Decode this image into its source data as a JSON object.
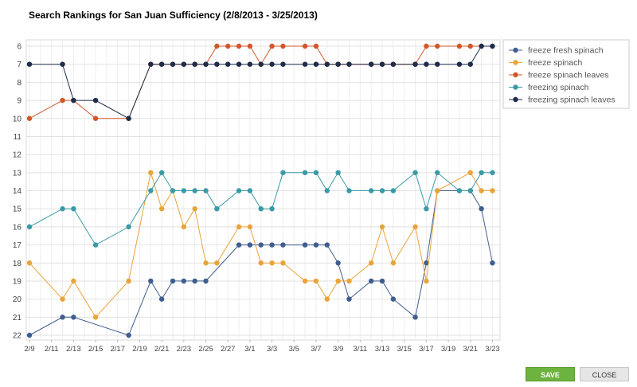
{
  "title": "Search Rankings for San Juan Sufficiency (2/8/2013 - 3/25/2013)",
  "buttons": {
    "save": "SAVE",
    "close": "CLOSE"
  },
  "chart_data": {
    "type": "line",
    "title": "Search Rankings for San Juan Sufficiency (2/8/2013 - 3/25/2013)",
    "x_range": [
      9,
      51.4
    ],
    "ylim": [
      6,
      22.4
    ],
    "y_inverted": true,
    "y_ticks": [
      6,
      7,
      8,
      9,
      10,
      11,
      12,
      13,
      14,
      15,
      16,
      17,
      18,
      19,
      20,
      21,
      22
    ],
    "x_ticks": [
      {
        "x": 9,
        "label": "2/9"
      },
      {
        "x": 11,
        "label": "2/11"
      },
      {
        "x": 13,
        "label": "2/13"
      },
      {
        "x": 15,
        "label": "2/15"
      },
      {
        "x": 17,
        "label": "2/17"
      },
      {
        "x": 19,
        "label": "2/19"
      },
      {
        "x": 21,
        "label": "2/21"
      },
      {
        "x": 23,
        "label": "2/23"
      },
      {
        "x": 25,
        "label": "2/25"
      },
      {
        "x": 27,
        "label": "2/27"
      },
      {
        "x": 29,
        "label": "3/1"
      },
      {
        "x": 31,
        "label": "3/3"
      },
      {
        "x": 33,
        "label": "3/5"
      },
      {
        "x": 35,
        "label": "3/7"
      },
      {
        "x": 37,
        "label": "3/9"
      },
      {
        "x": 39,
        "label": "3/11"
      },
      {
        "x": 41,
        "label": "3/13"
      },
      {
        "x": 43,
        "label": "3/15"
      },
      {
        "x": 45,
        "label": "3/17"
      },
      {
        "x": 47,
        "label": "3/19"
      },
      {
        "x": 49,
        "label": "3/21"
      },
      {
        "x": 51,
        "label": "3/23"
      }
    ],
    "legend_position": "right",
    "series": [
      {
        "name": "freeze fresh spinach",
        "color": "#3f5e8f",
        "points": [
          [
            9,
            22
          ],
          [
            12,
            21
          ],
          [
            13,
            21
          ],
          [
            18,
            22
          ],
          [
            20,
            19
          ],
          [
            21,
            20
          ],
          [
            22,
            19
          ],
          [
            23,
            19
          ],
          [
            24,
            19
          ],
          [
            25,
            19
          ],
          [
            28,
            17
          ],
          [
            29,
            17
          ],
          [
            30,
            17
          ],
          [
            31,
            17
          ],
          [
            32,
            17
          ],
          [
            34,
            17
          ],
          [
            35,
            17
          ],
          [
            36,
            17
          ],
          [
            37,
            18
          ],
          [
            38,
            20
          ],
          [
            40,
            19
          ],
          [
            41,
            19
          ],
          [
            42,
            20
          ],
          [
            44,
            21
          ],
          [
            45,
            18
          ],
          [
            46,
            14
          ],
          [
            48,
            14
          ],
          [
            49,
            14
          ],
          [
            50,
            15
          ],
          [
            51,
            18
          ]
        ]
      },
      {
        "name": "freeze spinach",
        "color": "#e8a43a",
        "points": [
          [
            9,
            18
          ],
          [
            12,
            20
          ],
          [
            13,
            19
          ],
          [
            15,
            21
          ],
          [
            18,
            19
          ],
          [
            20,
            13
          ],
          [
            21,
            15
          ],
          [
            22,
            14
          ],
          [
            23,
            16
          ],
          [
            24,
            15
          ],
          [
            25,
            18
          ],
          [
            26,
            18
          ],
          [
            28,
            16
          ],
          [
            29,
            16
          ],
          [
            30,
            18
          ],
          [
            31,
            18
          ],
          [
            32,
            18
          ],
          [
            34,
            19
          ],
          [
            35,
            19
          ],
          [
            36,
            20
          ],
          [
            37,
            19
          ],
          [
            38,
            19
          ],
          [
            40,
            18
          ],
          [
            41,
            16
          ],
          [
            42,
            18
          ],
          [
            44,
            16
          ],
          [
            45,
            19
          ],
          [
            46,
            14
          ],
          [
            49,
            13
          ],
          [
            50,
            14
          ],
          [
            51,
            14
          ]
        ]
      },
      {
        "name": "freeze spinach leaves",
        "color": "#d2572a",
        "points": [
          [
            9,
            10
          ],
          [
            12,
            9
          ],
          [
            13,
            9
          ],
          [
            15,
            10
          ],
          [
            18,
            10
          ],
          [
            20,
            7
          ],
          [
            21,
            7
          ],
          [
            22,
            7
          ],
          [
            23,
            7
          ],
          [
            24,
            7
          ],
          [
            25,
            7
          ],
          [
            26,
            6
          ],
          [
            27,
            6
          ],
          [
            28,
            6
          ],
          [
            29,
            6
          ],
          [
            30,
            7
          ],
          [
            31,
            6
          ],
          [
            32,
            6
          ],
          [
            34,
            6
          ],
          [
            35,
            6
          ],
          [
            36,
            7
          ],
          [
            37,
            7
          ],
          [
            38,
            7
          ],
          [
            40,
            7
          ],
          [
            41,
            7
          ],
          [
            42,
            7
          ],
          [
            44,
            7
          ],
          [
            45,
            6
          ],
          [
            46,
            6
          ],
          [
            48,
            6
          ],
          [
            49,
            6
          ],
          [
            50,
            6
          ],
          [
            51,
            6
          ]
        ]
      },
      {
        "name": "freezing spinach",
        "color": "#3a9aa6",
        "points": [
          [
            9,
            16
          ],
          [
            12,
            15
          ],
          [
            13,
            15
          ],
          [
            15,
            17
          ],
          [
            18,
            16
          ],
          [
            20,
            14
          ],
          [
            21,
            13
          ],
          [
            22,
            14
          ],
          [
            23,
            14
          ],
          [
            24,
            14
          ],
          [
            25,
            14
          ],
          [
            26,
            15
          ],
          [
            28,
            14
          ],
          [
            29,
            14
          ],
          [
            30,
            15
          ],
          [
            31,
            15
          ],
          [
            32,
            13
          ],
          [
            34,
            13
          ],
          [
            35,
            13
          ],
          [
            36,
            14
          ],
          [
            37,
            13
          ],
          [
            38,
            14
          ],
          [
            40,
            14
          ],
          [
            41,
            14
          ],
          [
            42,
            14
          ],
          [
            44,
            13
          ],
          [
            45,
            15
          ],
          [
            46,
            13
          ],
          [
            48,
            14
          ],
          [
            49,
            14
          ],
          [
            50,
            13
          ],
          [
            51,
            13
          ]
        ]
      },
      {
        "name": "freezing spinach leaves",
        "color": "#1f2d4a",
        "points": [
          [
            9,
            7
          ],
          [
            12,
            7
          ],
          [
            13,
            9
          ],
          [
            15,
            9
          ],
          [
            18,
            10
          ],
          [
            20,
            7
          ],
          [
            21,
            7
          ],
          [
            22,
            7
          ],
          [
            23,
            7
          ],
          [
            24,
            7
          ],
          [
            25,
            7
          ],
          [
            26,
            7
          ],
          [
            27,
            7
          ],
          [
            28,
            7
          ],
          [
            29,
            7
          ],
          [
            30,
            7
          ],
          [
            31,
            7
          ],
          [
            32,
            7
          ],
          [
            34,
            7
          ],
          [
            35,
            7
          ],
          [
            36,
            7
          ],
          [
            37,
            7
          ],
          [
            38,
            7
          ],
          [
            40,
            7
          ],
          [
            41,
            7
          ],
          [
            42,
            7
          ],
          [
            44,
            7
          ],
          [
            45,
            7
          ],
          [
            46,
            7
          ],
          [
            48,
            7
          ],
          [
            49,
            7
          ],
          [
            50,
            6
          ],
          [
            51,
            6
          ]
        ]
      }
    ]
  }
}
